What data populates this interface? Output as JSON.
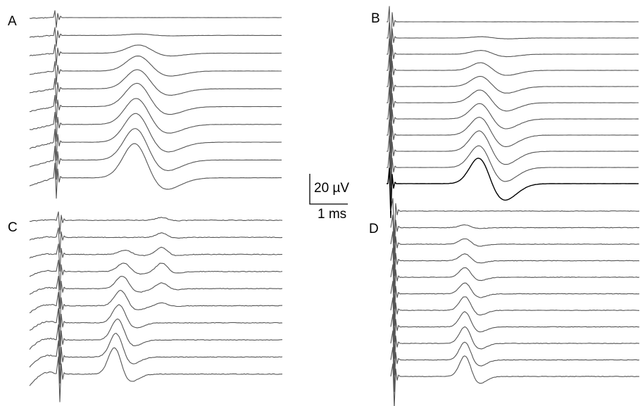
{
  "chart_data": [
    {
      "type": "line",
      "panel": "A",
      "trace_count": 10,
      "stimulus_artifact": true,
      "response": "single slow positive wave growing in amplitude from top to bottom trace",
      "peak_amplitudes_uV": [
        0,
        1,
        6,
        11,
        14,
        17,
        19,
        21,
        23,
        25
      ],
      "peak_latency_ms": [
        3.4,
        3.3,
        3.2,
        3.1,
        3.05,
        3.0,
        2.95,
        2.9,
        2.85,
        2.8
      ]
    },
    {
      "type": "line",
      "panel": "B",
      "trace_count": 11,
      "stimulus_artifact": true,
      "response": "single slow positive wave growing in amplitude; bottom trace drawn in black",
      "peak_amplitudes_uV": [
        0,
        1,
        3,
        6,
        8,
        10,
        12,
        14,
        16,
        17,
        20
      ],
      "peak_latency_ms": [
        3.4,
        3.35,
        3.3,
        3.25,
        3.2,
        3.15,
        3.1,
        3.05,
        3.0,
        2.95,
        2.9
      ]
    },
    {
      "type": "line",
      "panel": "C",
      "trace_count": 10,
      "stimulus_artifact": true,
      "response": "early and late waves, early wave growing and shortening in latency with stimulus strength",
      "early_peak_amplitudes_uV": [
        0,
        0,
        3,
        6,
        9,
        11,
        13,
        15,
        17,
        19
      ],
      "late_peak_amplitudes_uV": [
        2,
        3,
        5,
        6,
        4,
        2,
        0,
        0,
        0,
        0
      ]
    },
    {
      "type": "line",
      "panel": "D",
      "trace_count": 11,
      "stimulus_artifact": true,
      "response": "small fast wave growing in amplitude from top to bottom trace",
      "peak_amplitudes_uV": [
        0,
        2,
        4,
        5,
        7,
        8,
        10,
        11,
        12,
        13,
        15
      ]
    }
  ],
  "panels": {
    "a": "A",
    "b": "B",
    "c": "C",
    "d": "D"
  },
  "scale_bar": {
    "amplitude": "20 µV",
    "time": "1 ms"
  }
}
